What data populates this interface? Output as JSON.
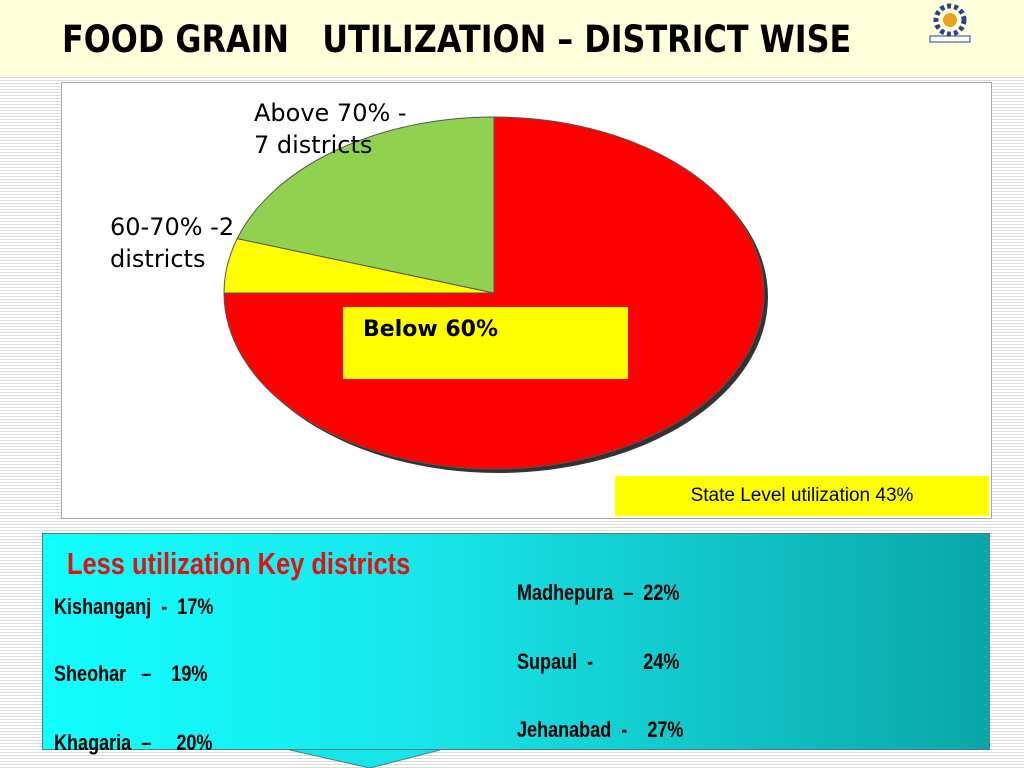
{
  "title": "Food Grain   Utilization – District wise",
  "logo": {
    "icon": "gear-logo-icon"
  },
  "chart_data": {
    "type": "pie",
    "slices": [
      {
        "label": "Below 60%",
        "value": 75,
        "color": "#ff0000"
      },
      {
        "label": "60-70% -2\ndistricts",
        "value": 5,
        "color": "#ffff00"
      },
      {
        "label": "Above 70% -\n7 districts",
        "value": 20,
        "color": "#92d050"
      }
    ]
  },
  "state_level": "State Level utilization 43%",
  "panel": {
    "heading": "Less utilization Key districts",
    "left": [
      "Kishanganj  -  17%",
      "Sheohar   –    19%",
      "Khagaria  –     20%"
    ],
    "right": [
      "Madhepura  –  22%",
      "Supaul  -          24%",
      "Jehanabad  -    27%"
    ]
  }
}
